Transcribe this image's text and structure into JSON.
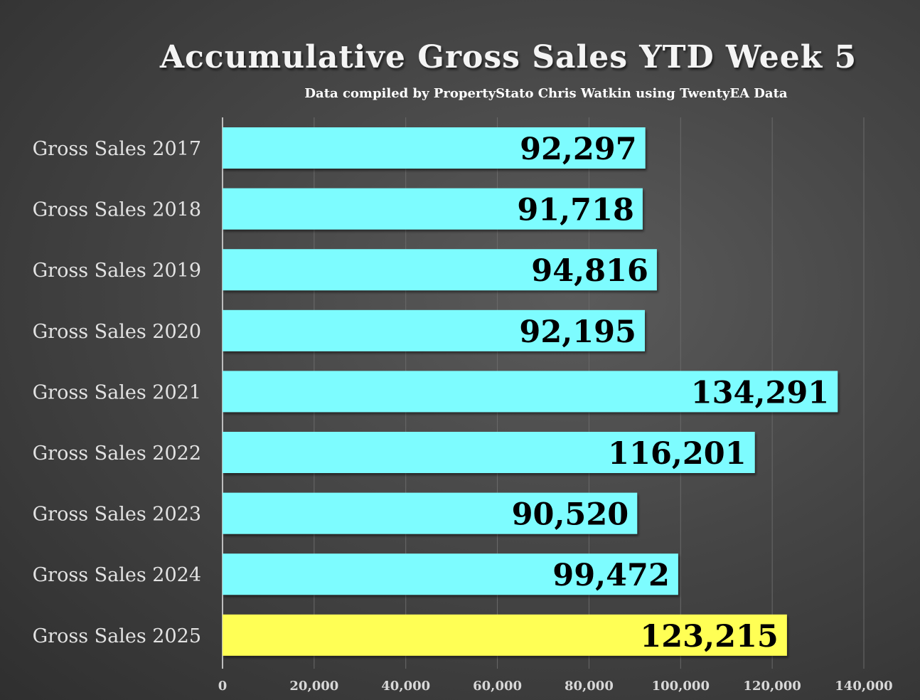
{
  "chart_data": {
    "type": "bar",
    "orientation": "horizontal",
    "title": "Accumulative Gross Sales YTD Week 5",
    "subtitle": "Data compiled by PropertyStato Chris Watkin using TwentyEA Data",
    "categories": [
      "Gross Sales 2017",
      "Gross Sales 2018",
      "Gross Sales 2019",
      "Gross Sales 2020",
      "Gross Sales 2021",
      "Gross Sales 2022",
      "Gross Sales 2023",
      "Gross Sales 2024",
      "Gross Sales 2025"
    ],
    "values": [
      92297,
      91718,
      94816,
      92195,
      134291,
      116201,
      90520,
      99472,
      123215
    ],
    "data_labels": [
      "92,297",
      "91,718",
      "94,816",
      "92,195",
      "134,291",
      "116,201",
      "90,520",
      "99,472",
      "123,215"
    ],
    "xlim": [
      0,
      140000
    ],
    "x_ticks": [
      0,
      20000,
      40000,
      60000,
      80000,
      100000,
      120000,
      140000
    ],
    "x_tick_labels": [
      "0",
      "20,000",
      "40,000",
      "60,000",
      "80,000",
      "100,000",
      "120,000",
      "140,000"
    ],
    "grid": "vertical",
    "legend": "none",
    "colors": {
      "bar": "#7dfcff",
      "highlight_bar": "#ffff55",
      "highlight_category": "Gross Sales 2025"
    }
  }
}
